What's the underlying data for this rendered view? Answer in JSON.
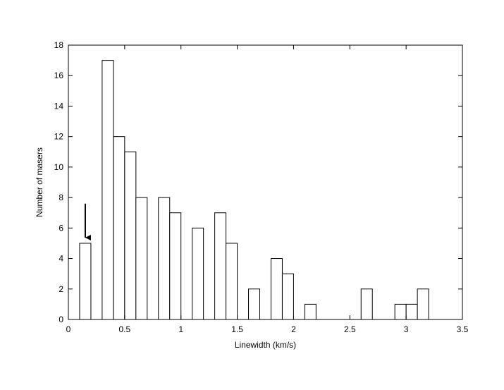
{
  "chart_data": {
    "type": "bar",
    "xlabel": "Linewidth (km/s)",
    "ylabel": "Number of masers",
    "xlim": [
      0,
      3.5
    ],
    "ylim": [
      0,
      18
    ],
    "xticks": [
      0,
      0.5,
      1,
      1.5,
      2,
      2.5,
      3,
      3.5
    ],
    "xtick_labels": [
      "0",
      "0.5",
      "1",
      "1.5",
      "2",
      "2.5",
      "3",
      "3.5"
    ],
    "yticks": [
      0,
      2,
      4,
      6,
      8,
      10,
      12,
      14,
      16,
      18
    ],
    "ytick_labels": [
      "0",
      "2",
      "4",
      "6",
      "8",
      "10",
      "12",
      "14",
      "16",
      "18"
    ],
    "bin_width": 0.1,
    "bins": [
      {
        "x": 0.1,
        "value": 5
      },
      {
        "x": 0.3,
        "value": 17
      },
      {
        "x": 0.4,
        "value": 12
      },
      {
        "x": 0.5,
        "value": 11
      },
      {
        "x": 0.6,
        "value": 8
      },
      {
        "x": 0.8,
        "value": 8
      },
      {
        "x": 0.9,
        "value": 7
      },
      {
        "x": 1.1,
        "value": 6
      },
      {
        "x": 1.3,
        "value": 7
      },
      {
        "x": 1.4,
        "value": 5
      },
      {
        "x": 1.6,
        "value": 2
      },
      {
        "x": 1.8,
        "value": 4
      },
      {
        "x": 1.9,
        "value": 3
      },
      {
        "x": 2.1,
        "value": 1
      },
      {
        "x": 2.6,
        "value": 2
      },
      {
        "x": 2.9,
        "value": 1
      },
      {
        "x": 3.0,
        "value": 1
      },
      {
        "x": 3.1,
        "value": 2
      }
    ],
    "annotations": [
      {
        "type": "arrow",
        "direction": "down",
        "x": 0.15,
        "y_from": 7.6,
        "y_to": 5.0
      }
    ],
    "grid": false,
    "legend": "none"
  }
}
